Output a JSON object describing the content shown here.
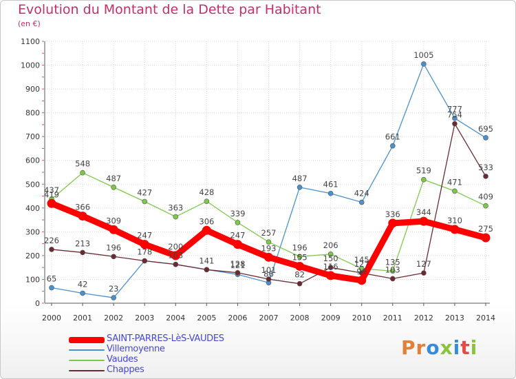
{
  "title": "Evolution du Montant de la Dette par Habitant",
  "unit_label": "(en €)",
  "logo_text": "Proxiti",
  "logo_colors": [
    "#e0803a",
    "#e0803a",
    "#3a8ad8",
    "#8ac43a",
    "#3a8ad8",
    "#e04a4a",
    "#8ac43a"
  ],
  "chart_data": {
    "type": "line",
    "x": [
      "2000",
      "2001",
      "2002",
      "2003",
      "2004",
      "2005",
      "2006",
      "2007",
      "2008",
      "2009",
      "2010",
      "2011",
      "2012",
      "2013",
      "2014"
    ],
    "ylim": [
      0,
      1100
    ],
    "yticks": [
      0,
      100,
      200,
      300,
      400,
      500,
      600,
      700,
      800,
      900,
      1000,
      1100
    ],
    "grid": true,
    "legend_position": "bottom-left",
    "series": [
      {
        "name": "Villemoyenne",
        "color": "#4a90cc",
        "values": [
          65,
          42,
          23,
          178,
          163,
          141,
          121,
          86,
          487,
          461,
          424,
          661,
          1005,
          777,
          695
        ]
      },
      {
        "name": "Vaudes",
        "color": "#7dc84a",
        "values": [
          437,
          548,
          487,
          427,
          363,
          428,
          339,
          257,
          196,
          206,
          145,
          135,
          519,
          471,
          409
        ]
      },
      {
        "name": "Chappes",
        "color": "#6b2a32",
        "values": [
          226,
          213,
          196,
          178,
          163,
          141,
          128,
          101,
          82,
          150,
          127,
          103,
          127,
          754,
          533
        ]
      },
      {
        "name": "SAINT-PARRES-LèS-VAUDES",
        "color": "#ff0000",
        "values": [
          419,
          366,
          309,
          247,
          200,
          306,
          247,
          193,
          155,
          116,
          96,
          336,
          344,
          310,
          275
        ],
        "labels": [
          "",
          "366",
          "309",
          "247",
          "200",
          "306",
          "247",
          "193",
          "155",
          "116",
          "",
          "336",
          "344",
          "310",
          "275"
        ]
      }
    ],
    "point_labels": {
      "Villemoyenne": [
        "65",
        "42",
        "23",
        "178",
        "163",
        "141",
        "121",
        "86",
        "487",
        "461",
        "424",
        "661",
        "1005",
        "777",
        "695"
      ],
      "Vaudes": [
        "437",
        "548",
        "487",
        "427",
        "363",
        "428",
        "339",
        "257",
        "196",
        "206",
        "145",
        "135",
        "519",
        "471",
        "409"
      ],
      "Chappes": [
        "226",
        "213",
        "196",
        "",
        "",
        "",
        "128",
        "101",
        "82",
        "150",
        "127",
        "103",
        "127",
        "754",
        "533"
      ],
      "SAINT-PARRES-LèS-VAUDES": [
        "419",
        "366",
        "309",
        "247",
        "200",
        "306",
        "247",
        "193",
        "155",
        "116",
        "96",
        "336",
        "344",
        "310",
        "275"
      ]
    }
  },
  "legend": [
    {
      "label": "SAINT-PARRES-LèS-VAUDES",
      "color": "#ff0000",
      "width": 9
    },
    {
      "label": "Villemoyenne",
      "color": "#4a90cc",
      "width": 2
    },
    {
      "label": "Vaudes",
      "color": "#7dc84a",
      "width": 2
    },
    {
      "label": "Chappes",
      "color": "#6b2a32",
      "width": 2
    }
  ]
}
